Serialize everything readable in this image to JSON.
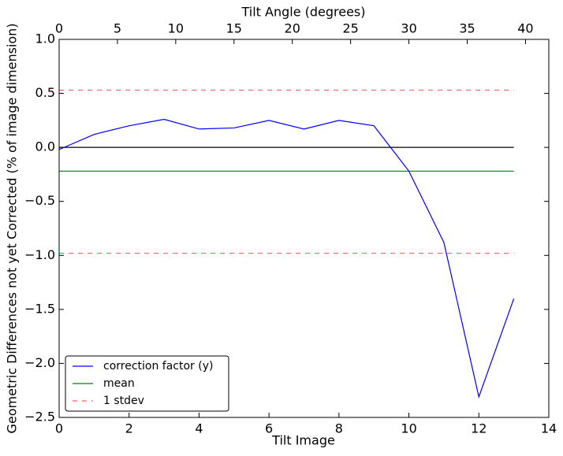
{
  "chart_data": {
    "type": "line",
    "xlabel": "Tilt Image",
    "ylabel": "Geometric Differences not yet Corrected (% of image dimension)",
    "x2label": "Tilt Angle (degrees)",
    "x": [
      0,
      1,
      2,
      3,
      4,
      5,
      6,
      7,
      8,
      9,
      10,
      11,
      12,
      13
    ],
    "series": [
      {
        "name": "correction factor (y)",
        "color": "#0000ff",
        "values": [
          -0.02,
          0.12,
          0.2,
          0.26,
          0.17,
          0.18,
          0.25,
          0.17,
          0.25,
          0.2,
          -0.22,
          -0.88,
          -2.31,
          -1.4
        ]
      }
    ],
    "hlines": [
      {
        "color": "#000000",
        "y": [
          0
        ]
      },
      {
        "name": "mean",
        "color": "#008000",
        "y": [
          -0.22
        ]
      },
      {
        "name": "1 stdev",
        "color": "#ff6060",
        "dashed": true,
        "y": [
          0.53,
          -0.98
        ]
      }
    ],
    "xlim": [
      0,
      14
    ],
    "xticks": [
      0,
      2,
      4,
      6,
      8,
      10,
      12,
      14
    ],
    "x2lim": [
      0,
      42
    ],
    "x2ticks": [
      0,
      5,
      10,
      15,
      20,
      25,
      30,
      35,
      40
    ],
    "ylim": [
      -2.5,
      1.0
    ],
    "yticks": [
      {
        "value": -2.5,
        "label": "−2.5"
      },
      {
        "value": -2.0,
        "label": "−2.0"
      },
      {
        "value": -1.5,
        "label": "−1.5"
      },
      {
        "value": -1.0,
        "label": "−1.0"
      },
      {
        "value": -0.5,
        "label": "−0.5"
      },
      {
        "value": 0,
        "label": "0.0"
      },
      0.5,
      {
        "value": 1.0,
        "label": "1.0"
      }
    ],
    "legend": "lower left"
  }
}
